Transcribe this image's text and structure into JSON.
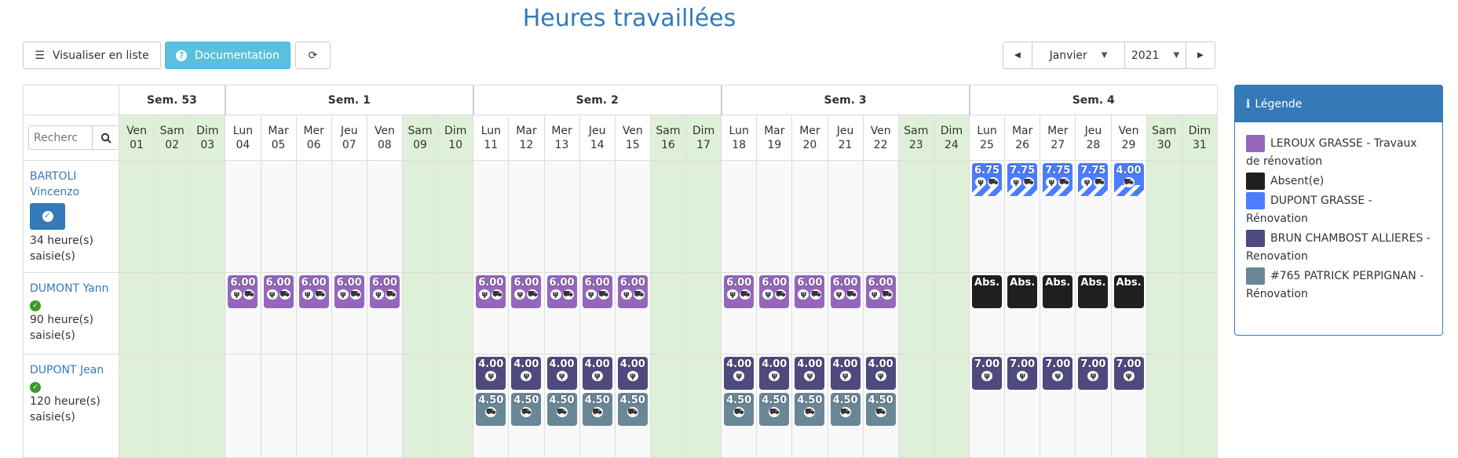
{
  "page": {
    "title": "Heures travaillées"
  },
  "toolbar": {
    "list_label": "Visualiser en liste",
    "doc_label": "Documentation",
    "month": "Janvier",
    "year": "2021"
  },
  "search": {
    "placeholder": "Recherc"
  },
  "weeks": [
    {
      "label": "Sem. 53",
      "span": 3
    },
    {
      "label": "Sem. 1",
      "span": 7
    },
    {
      "label": "Sem. 2",
      "span": 7
    },
    {
      "label": "Sem. 3",
      "span": 7
    },
    {
      "label": "Sem. 4",
      "span": 7
    }
  ],
  "days": [
    {
      "d": "Ven",
      "n": "01",
      "we": true
    },
    {
      "d": "Sam",
      "n": "02",
      "we": true
    },
    {
      "d": "Dim",
      "n": "03",
      "we": true
    },
    {
      "d": "Lun",
      "n": "04"
    },
    {
      "d": "Mar",
      "n": "05"
    },
    {
      "d": "Mer",
      "n": "06"
    },
    {
      "d": "Jeu",
      "n": "07"
    },
    {
      "d": "Ven",
      "n": "08"
    },
    {
      "d": "Sam",
      "n": "09",
      "we": true
    },
    {
      "d": "Dim",
      "n": "10",
      "we": true
    },
    {
      "d": "Lun",
      "n": "11"
    },
    {
      "d": "Mar",
      "n": "12"
    },
    {
      "d": "Mer",
      "n": "13"
    },
    {
      "d": "Jeu",
      "n": "14"
    },
    {
      "d": "Ven",
      "n": "15"
    },
    {
      "d": "Sam",
      "n": "16",
      "we": true
    },
    {
      "d": "Dim",
      "n": "17",
      "we": true
    },
    {
      "d": "Lun",
      "n": "18"
    },
    {
      "d": "Mar",
      "n": "19"
    },
    {
      "d": "Mer",
      "n": "20"
    },
    {
      "d": "Jeu",
      "n": "21"
    },
    {
      "d": "Ven",
      "n": "22"
    },
    {
      "d": "Sam",
      "n": "23",
      "we": true
    },
    {
      "d": "Dim",
      "n": "24",
      "we": true
    },
    {
      "d": "Lun",
      "n": "25"
    },
    {
      "d": "Mar",
      "n": "26"
    },
    {
      "d": "Mer",
      "n": "27"
    },
    {
      "d": "Jeu",
      "n": "28"
    },
    {
      "d": "Ven",
      "n": "29"
    },
    {
      "d": "Sam",
      "n": "30",
      "we": true
    },
    {
      "d": "Dim",
      "n": "31",
      "we": true
    }
  ],
  "legend": {
    "title": "Légende",
    "items": [
      {
        "label": "LEROUX GRASSE - Travaux de rénovation",
        "color": "#9467bd"
      },
      {
        "label": "Absent(e)",
        "color": "#1f1f1f"
      },
      {
        "label": "DUPONT GRASSE - Rénovation",
        "color": "#4a7dff"
      },
      {
        "label": "BRUN CHAMBOST ALLIERES - Renovation",
        "color": "#4e4a7e"
      },
      {
        "label": "#765 PATRICK PERPIGNAN - Rénovation",
        "color": "#6a8797"
      }
    ]
  },
  "employees": [
    {
      "first": "BARTOLI",
      "last": "Vincenzo",
      "validated_button": true,
      "hours": "34 heure(s)",
      "hours_suffix": "saisie(s)",
      "entries": [
        {
          "day": 24,
          "tiles": [
            {
              "value": "6.75",
              "color": "#4a7dff",
              "icons": [
                "fork-icon",
                "truck-icon"
              ],
              "striped": true
            }
          ]
        },
        {
          "day": 25,
          "tiles": [
            {
              "value": "7.75",
              "color": "#4a7dff",
              "icons": [
                "fork-icon",
                "truck-icon"
              ],
              "striped": true
            }
          ]
        },
        {
          "day": 26,
          "tiles": [
            {
              "value": "7.75",
              "color": "#4a7dff",
              "icons": [
                "fork-icon",
                "truck-icon"
              ],
              "striped": true
            }
          ]
        },
        {
          "day": 27,
          "tiles": [
            {
              "value": "7.75",
              "color": "#4a7dff",
              "icons": [
                "fork-icon",
                "truck-icon"
              ],
              "striped": true
            }
          ]
        },
        {
          "day": 28,
          "tiles": [
            {
              "value": "4.00",
              "color": "#4a7dff",
              "icons": [
                "truck-icon"
              ],
              "striped": true
            }
          ]
        }
      ]
    },
    {
      "first": "DUMONT Yann",
      "last": "",
      "validated_button": false,
      "hours": "90 heure(s)",
      "hours_suffix": "saisie(s)",
      "entries": [
        {
          "day": 3,
          "tiles": [
            {
              "value": "6.00",
              "color": "#9467bd",
              "icons": [
                "fork-icon",
                "truck-icon"
              ]
            }
          ]
        },
        {
          "day": 4,
          "tiles": [
            {
              "value": "6.00",
              "color": "#9467bd",
              "icons": [
                "fork-icon",
                "truck-icon"
              ]
            }
          ]
        },
        {
          "day": 5,
          "tiles": [
            {
              "value": "6.00",
              "color": "#9467bd",
              "icons": [
                "fork-icon",
                "truck-icon"
              ]
            }
          ]
        },
        {
          "day": 6,
          "tiles": [
            {
              "value": "6.00",
              "color": "#9467bd",
              "icons": [
                "fork-icon",
                "truck-icon"
              ]
            }
          ]
        },
        {
          "day": 7,
          "tiles": [
            {
              "value": "6.00",
              "color": "#9467bd",
              "icons": [
                "fork-icon",
                "truck-icon"
              ]
            }
          ]
        },
        {
          "day": 10,
          "tiles": [
            {
              "value": "6.00",
              "color": "#9467bd",
              "icons": [
                "fork-icon",
                "truck-icon"
              ]
            }
          ]
        },
        {
          "day": 11,
          "tiles": [
            {
              "value": "6.00",
              "color": "#9467bd",
              "icons": [
                "fork-icon",
                "truck-icon"
              ]
            }
          ]
        },
        {
          "day": 12,
          "tiles": [
            {
              "value": "6.00",
              "color": "#9467bd",
              "icons": [
                "fork-icon",
                "truck-icon"
              ]
            }
          ]
        },
        {
          "day": 13,
          "tiles": [
            {
              "value": "6.00",
              "color": "#9467bd",
              "icons": [
                "fork-icon",
                "truck-icon"
              ]
            }
          ]
        },
        {
          "day": 14,
          "tiles": [
            {
              "value": "6.00",
              "color": "#9467bd",
              "icons": [
                "fork-icon",
                "truck-icon"
              ]
            }
          ]
        },
        {
          "day": 17,
          "tiles": [
            {
              "value": "6.00",
              "color": "#9467bd",
              "icons": [
                "fork-icon",
                "truck-icon"
              ]
            }
          ]
        },
        {
          "day": 18,
          "tiles": [
            {
              "value": "6.00",
              "color": "#9467bd",
              "icons": [
                "fork-icon",
                "truck-icon"
              ]
            }
          ]
        },
        {
          "day": 19,
          "tiles": [
            {
              "value": "6.00",
              "color": "#9467bd",
              "icons": [
                "fork-icon",
                "truck-icon"
              ]
            }
          ]
        },
        {
          "day": 20,
          "tiles": [
            {
              "value": "6.00",
              "color": "#9467bd",
              "icons": [
                "fork-icon",
                "truck-icon"
              ]
            }
          ]
        },
        {
          "day": 21,
          "tiles": [
            {
              "value": "6.00",
              "color": "#9467bd",
              "icons": [
                "fork-icon",
                "truck-icon"
              ]
            }
          ]
        },
        {
          "day": 24,
          "tiles": [
            {
              "value": "Abs.",
              "color": "#1f1f1f",
              "icons": []
            }
          ]
        },
        {
          "day": 25,
          "tiles": [
            {
              "value": "Abs.",
              "color": "#1f1f1f",
              "icons": []
            }
          ]
        },
        {
          "day": 26,
          "tiles": [
            {
              "value": "Abs.",
              "color": "#1f1f1f",
              "icons": []
            }
          ]
        },
        {
          "day": 27,
          "tiles": [
            {
              "value": "Abs.",
              "color": "#1f1f1f",
              "icons": []
            }
          ]
        },
        {
          "day": 28,
          "tiles": [
            {
              "value": "Abs.",
              "color": "#1f1f1f",
              "icons": []
            }
          ]
        }
      ]
    },
    {
      "first": "DUPONT Jean",
      "last": "",
      "validated_button": false,
      "hours": "120 heure(s)",
      "hours_suffix": "saisie(s)",
      "entries": [
        {
          "day": 10,
          "tiles": [
            {
              "value": "4.00",
              "color": "#4e4a7e",
              "icons": [
                "fork-icon"
              ]
            },
            {
              "value": "4.50",
              "color": "#6a8797",
              "icons": [
                "truck-icon"
              ]
            }
          ]
        },
        {
          "day": 11,
          "tiles": [
            {
              "value": "4.00",
              "color": "#4e4a7e",
              "icons": [
                "fork-icon"
              ]
            },
            {
              "value": "4.50",
              "color": "#6a8797",
              "icons": [
                "truck-icon"
              ]
            }
          ]
        },
        {
          "day": 12,
          "tiles": [
            {
              "value": "4.00",
              "color": "#4e4a7e",
              "icons": [
                "fork-icon"
              ]
            },
            {
              "value": "4.50",
              "color": "#6a8797",
              "icons": [
                "truck-icon"
              ]
            }
          ]
        },
        {
          "day": 13,
          "tiles": [
            {
              "value": "4.00",
              "color": "#4e4a7e",
              "icons": [
                "fork-icon"
              ]
            },
            {
              "value": "4.50",
              "color": "#6a8797",
              "icons": [
                "truck-icon"
              ]
            }
          ]
        },
        {
          "day": 14,
          "tiles": [
            {
              "value": "4.00",
              "color": "#4e4a7e",
              "icons": [
                "fork-icon"
              ]
            },
            {
              "value": "4.50",
              "color": "#6a8797",
              "icons": [
                "truck-icon"
              ]
            }
          ]
        },
        {
          "day": 17,
          "tiles": [
            {
              "value": "4.00",
              "color": "#4e4a7e",
              "icons": [
                "fork-icon"
              ]
            },
            {
              "value": "4.50",
              "color": "#6a8797",
              "icons": [
                "truck-icon"
              ]
            }
          ]
        },
        {
          "day": 18,
          "tiles": [
            {
              "value": "4.00",
              "color": "#4e4a7e",
              "icons": [
                "fork-icon"
              ]
            },
            {
              "value": "4.50",
              "color": "#6a8797",
              "icons": [
                "truck-icon"
              ]
            }
          ]
        },
        {
          "day": 19,
          "tiles": [
            {
              "value": "4.00",
              "color": "#4e4a7e",
              "icons": [
                "fork-icon"
              ]
            },
            {
              "value": "4.50",
              "color": "#6a8797",
              "icons": [
                "truck-icon"
              ]
            }
          ]
        },
        {
          "day": 20,
          "tiles": [
            {
              "value": "4.00",
              "color": "#4e4a7e",
              "icons": [
                "fork-icon"
              ]
            },
            {
              "value": "4.50",
              "color": "#6a8797",
              "icons": [
                "truck-icon"
              ]
            }
          ]
        },
        {
          "day": 21,
          "tiles": [
            {
              "value": "4.00",
              "color": "#4e4a7e",
              "icons": [
                "fork-icon"
              ]
            },
            {
              "value": "4.50",
              "color": "#6a8797",
              "icons": [
                "truck-icon"
              ]
            }
          ]
        },
        {
          "day": 24,
          "tiles": [
            {
              "value": "7.00",
              "color": "#4e4a7e",
              "icons": [
                "fork-icon"
              ]
            }
          ]
        },
        {
          "day": 25,
          "tiles": [
            {
              "value": "7.00",
              "color": "#4e4a7e",
              "icons": [
                "fork-icon"
              ]
            }
          ]
        },
        {
          "day": 26,
          "tiles": [
            {
              "value": "7.00",
              "color": "#4e4a7e",
              "icons": [
                "fork-icon"
              ]
            }
          ]
        },
        {
          "day": 27,
          "tiles": [
            {
              "value": "7.00",
              "color": "#4e4a7e",
              "icons": [
                "fork-icon"
              ]
            }
          ]
        },
        {
          "day": 28,
          "tiles": [
            {
              "value": "7.00",
              "color": "#4e4a7e",
              "icons": [
                "fork-icon"
              ]
            }
          ]
        }
      ]
    }
  ]
}
